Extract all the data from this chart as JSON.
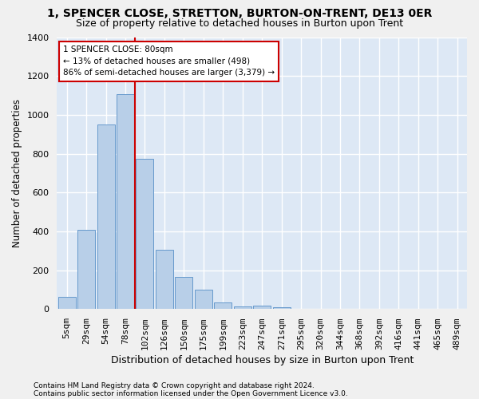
{
  "title1": "1, SPENCER CLOSE, STRETTON, BURTON-ON-TRENT, DE13 0ER",
  "title2": "Size of property relative to detached houses in Burton upon Trent",
  "xlabel": "Distribution of detached houses by size in Burton upon Trent",
  "ylabel": "Number of detached properties",
  "footnote1": "Contains HM Land Registry data © Crown copyright and database right 2024.",
  "footnote2": "Contains public sector information licensed under the Open Government Licence v3.0.",
  "annotation_line1": "1 SPENCER CLOSE: 80sqm",
  "annotation_line2": "← 13% of detached houses are smaller (498)",
  "annotation_line3": "86% of semi-detached houses are larger (3,379) →",
  "bar_color": "#b8cfe8",
  "bar_edgecolor": "#6699cc",
  "vline_color": "#cc0000",
  "bg_color": "#dde8f5",
  "grid_color": "#ffffff",
  "categories": [
    "5sqm",
    "29sqm",
    "54sqm",
    "78sqm",
    "102sqm",
    "126sqm",
    "150sqm",
    "175sqm",
    "199sqm",
    "223sqm",
    "247sqm",
    "271sqm",
    "295sqm",
    "320sqm",
    "344sqm",
    "368sqm",
    "392sqm",
    "416sqm",
    "441sqm",
    "465sqm",
    "489sqm"
  ],
  "values": [
    65,
    410,
    950,
    1105,
    775,
    305,
    165,
    98,
    35,
    15,
    18,
    8,
    3,
    2,
    1,
    1,
    0,
    0,
    0,
    0,
    0
  ],
  "vline_x": 3.5,
  "ylim": [
    0,
    1400
  ],
  "yticks": [
    0,
    200,
    400,
    600,
    800,
    1000,
    1200,
    1400
  ],
  "title1_fontsize": 10,
  "title2_fontsize": 9,
  "xlabel_fontsize": 9,
  "ylabel_fontsize": 8.5,
  "tick_fontsize": 8,
  "footnote_fontsize": 6.5
}
